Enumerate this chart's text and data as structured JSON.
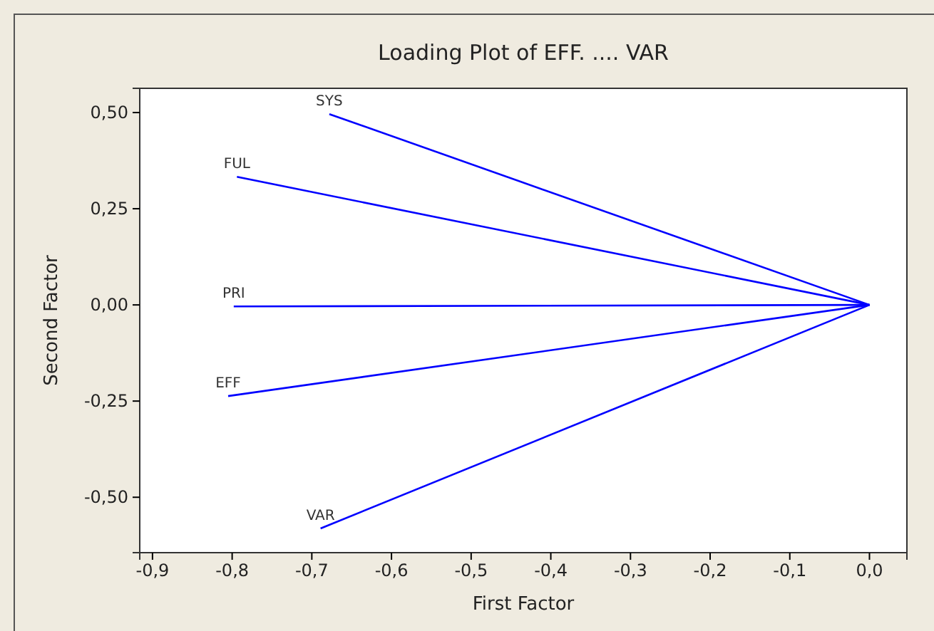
{
  "chart_data": {
    "type": "line",
    "title": "Loading Plot of EFF. .... VAR",
    "xlabel": "First Factor",
    "ylabel": "Second Factor",
    "xlim": [
      -0.916,
      0.047
    ],
    "ylim": [
      -0.644,
      0.563
    ],
    "xticks": [
      {
        "value": -0.9,
        "label": "-0,9"
      },
      {
        "value": -0.8,
        "label": "-0,8"
      },
      {
        "value": -0.7,
        "label": "-0,7"
      },
      {
        "value": -0.6,
        "label": "-0,6"
      },
      {
        "value": -0.5,
        "label": "-0,5"
      },
      {
        "value": -0.4,
        "label": "-0,4"
      },
      {
        "value": -0.3,
        "label": "-0,3"
      },
      {
        "value": -0.2,
        "label": "-0,2"
      },
      {
        "value": -0.1,
        "label": "-0,1"
      },
      {
        "value": 0,
        "label": "0,0"
      }
    ],
    "yticks": [
      {
        "value": -0.5,
        "label": "-0,50"
      },
      {
        "value": -0.25,
        "label": "-0,25"
      },
      {
        "value": 0,
        "label": "0,00"
      },
      {
        "value": 0.25,
        "label": "0,25"
      },
      {
        "value": 0.5,
        "label": "0,50"
      }
    ],
    "grid": false,
    "legend": false,
    "marker": "none",
    "line_style": "solid",
    "series": [
      {
        "name": "SYS",
        "color": "#0000ff",
        "x": [
          0,
          -0.678
        ],
        "values": [
          0,
          0.496
        ]
      },
      {
        "name": "FUL",
        "color": "#0000ff",
        "x": [
          0,
          -0.794
        ],
        "values": [
          0,
          0.333
        ]
      },
      {
        "name": "PRI",
        "color": "#0000ff",
        "x": [
          0,
          -0.798
        ],
        "values": [
          0,
          -0.004
        ]
      },
      {
        "name": "EFF",
        "color": "#0000ff",
        "x": [
          0,
          -0.805
        ],
        "values": [
          0,
          -0.237
        ]
      },
      {
        "name": "VAR",
        "color": "#0000ff",
        "x": [
          0,
          -0.689
        ],
        "values": [
          0,
          -0.581
        ]
      }
    ]
  }
}
